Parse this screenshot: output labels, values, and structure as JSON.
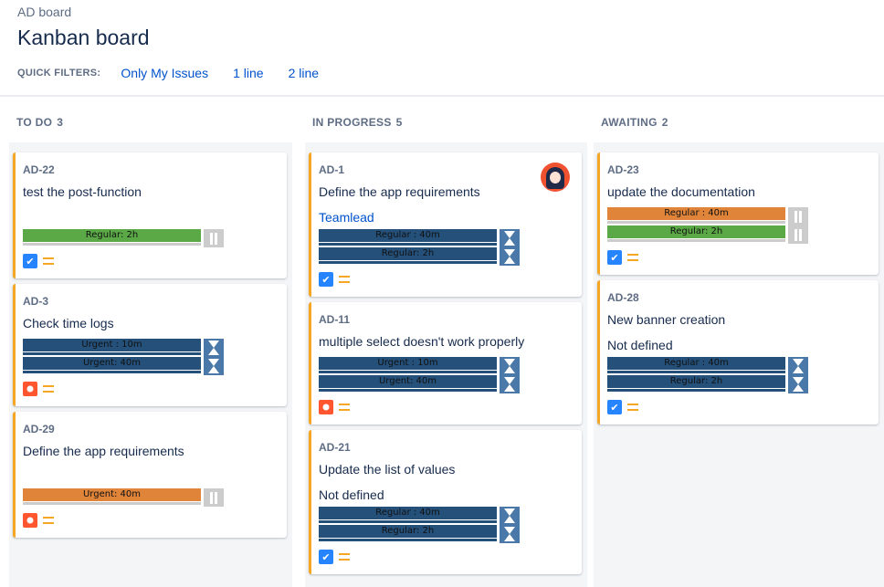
{
  "header": {
    "breadcrumb": "AD board",
    "title": "Kanban board"
  },
  "filters": {
    "label": "QUICK FILTERS:",
    "items": [
      "Only My Issues",
      "1 line",
      "2 line"
    ]
  },
  "colors": {
    "green": "#5aa846",
    "orange": "#e0843a",
    "blue": "#24507a",
    "story": "#2684ff",
    "bug": "#ff5630",
    "priority": "#f5a623"
  },
  "columns": [
    {
      "title": "TO DO",
      "count": "3",
      "cards": [
        {
          "key": "AD-22",
          "summary": "test the post-function",
          "label": "",
          "type": "story",
          "priority": "medium",
          "bars": [
            {
              "text": "Regular: 2h",
              "color": "green",
              "icon": "pause"
            }
          ]
        },
        {
          "key": "AD-3",
          "summary": "Check time logs",
          "type": "bug",
          "priority": "medium",
          "bars": [
            {
              "text": "Urgent : 10m",
              "color": "blue",
              "icon": "hourglass"
            },
            {
              "text": "Urgent: 40m",
              "color": "blue",
              "icon": "hourglass"
            }
          ]
        },
        {
          "key": "AD-29",
          "summary": "Define the app requirements",
          "label": "",
          "type": "bug",
          "priority": "medium",
          "bars": [
            {
              "text": "Urgent: 40m",
              "color": "orange",
              "icon": "pause"
            }
          ]
        }
      ]
    },
    {
      "title": "IN PROGRESS",
      "count": "5",
      "cards": [
        {
          "key": "AD-1",
          "summary": "Define the app requirements",
          "label": "Teamlead",
          "label_link": true,
          "avatar": true,
          "type": "story",
          "priority": "medium",
          "bars": [
            {
              "text": "Regular : 40m",
              "color": "blue",
              "icon": "hourglass"
            },
            {
              "text": "Regular: 2h",
              "color": "blue",
              "icon": "hourglass"
            }
          ]
        },
        {
          "key": "AD-11",
          "summary": "multiple select doesn't work properly",
          "type": "bug",
          "priority": "medium",
          "bars": [
            {
              "text": "Urgent : 10m",
              "color": "blue",
              "icon": "hourglass"
            },
            {
              "text": "Urgent: 40m",
              "color": "blue",
              "icon": "hourglass"
            }
          ]
        },
        {
          "key": "AD-21",
          "summary": "Update the list of values",
          "label": "Not defined",
          "type": "story",
          "priority": "medium",
          "bars": [
            {
              "text": "Regular : 40m",
              "color": "blue",
              "icon": "hourglass"
            },
            {
              "text": "Regular: 2h",
              "color": "blue",
              "icon": "hourglass"
            }
          ]
        }
      ]
    },
    {
      "title": "AWAITING",
      "count": "2",
      "cards": [
        {
          "key": "AD-23",
          "summary": "update the documentation",
          "type": "story",
          "priority": "medium",
          "bars": [
            {
              "text": "Regular : 40m",
              "color": "orange",
              "icon": "pause"
            },
            {
              "text": "Regular: 2h",
              "color": "green",
              "icon": "pause"
            }
          ]
        },
        {
          "key": "AD-28",
          "summary": "New banner creation",
          "label": "Not defined",
          "type": "story",
          "priority": "medium",
          "bars": [
            {
              "text": "Regular : 40m",
              "color": "blue",
              "icon": "hourglass"
            },
            {
              "text": "Regular: 2h",
              "color": "blue",
              "icon": "hourglass"
            }
          ]
        }
      ]
    }
  ]
}
